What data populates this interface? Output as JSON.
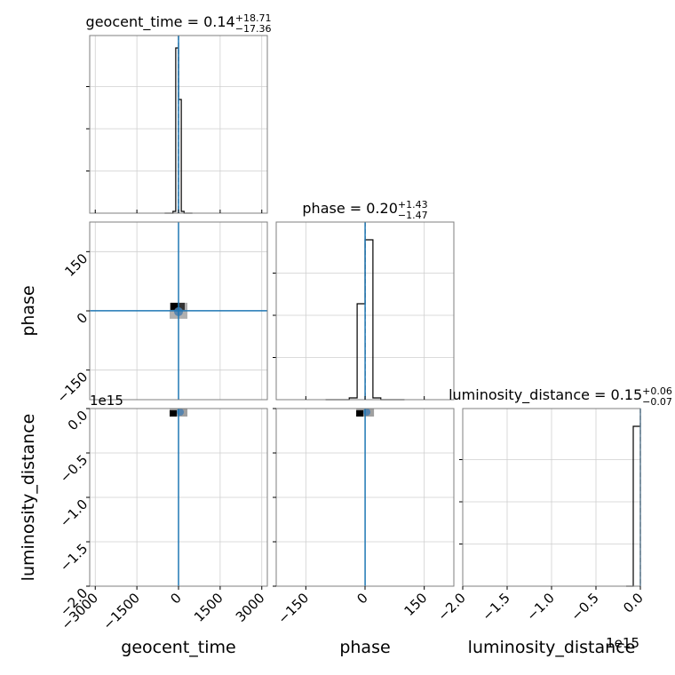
{
  "chart_data": {
    "type": "corner",
    "parameters": [
      "geocent_time",
      "phase",
      "luminosity_distance"
    ],
    "titles": [
      {
        "text": "geocent_time = 0.14",
        "plus": "+18.71",
        "minus": "−17.36"
      },
      {
        "text": "phase = 0.20",
        "plus": "+1.43",
        "minus": "−1.47"
      },
      {
        "text": "luminosity_distance = 0.15",
        "plus": "+0.06",
        "minus": "−0.07"
      }
    ],
    "axes": {
      "geocent_time": {
        "range": [
          -3200,
          3200
        ],
        "ticks": [
          -3000,
          -1500,
          0,
          1500,
          3000
        ],
        "tick_labels": [
          "−3000",
          "−1500",
          "0",
          "1500",
          "3000"
        ],
        "truth": 0.14
      },
      "phase": {
        "range": [
          -225,
          225
        ],
        "ticks": [
          -150,
          0,
          150
        ],
        "tick_labels": [
          "−150",
          "0",
          "150"
        ],
        "truth": 0.2
      },
      "luminosity_distance": {
        "range": [
          -2.0,
          0.0
        ],
        "ticks": [
          -2.0,
          -1.5,
          -1.0,
          -0.5,
          0.0
        ],
        "tick_labels": [
          "−2.0",
          "−1.5",
          "−1.0",
          "−0.5",
          "0.0"
        ],
        "offset_text": "1e15",
        "truth": 0.0
      }
    },
    "histograms": {
      "geocent_time": {
        "edges": [
          -500,
          -400,
          -300,
          -200,
          -100,
          0,
          100,
          200,
          300,
          400,
          500
        ],
        "counts": [
          0,
          0,
          0,
          0.01,
          0.93,
          0.64,
          0.01,
          0,
          0,
          0
        ]
      },
      "phase": {
        "edges": [
          -100,
          -80,
          -60,
          -40,
          -20,
          0,
          20,
          40,
          60,
          80,
          100
        ],
        "counts": [
          0,
          0,
          0,
          0.01,
          0.54,
          0.9,
          0.01,
          0,
          0,
          0
        ]
      },
      "luminosity_distance": {
        "edges": [
          -0.16,
          -0.14,
          -0.12,
          -0.1,
          -0.08,
          -0.06,
          -0.04,
          -0.02,
          0.0
        ],
        "counts": [
          0,
          0,
          0,
          0,
          0.9,
          0.9,
          0.9,
          0.9
        ]
      }
    },
    "truth_color": "#1f77b4",
    "hist_color": "#000000",
    "grid": true
  },
  "labels": {
    "x": [
      "geocent_time",
      "phase",
      "luminosity_distance"
    ],
    "y": [
      "phase",
      "luminosity_distance"
    ]
  }
}
